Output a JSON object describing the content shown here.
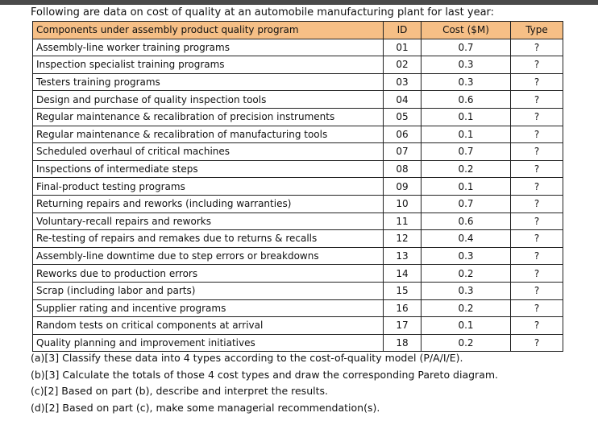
{
  "intro": "Following are data on cost of quality at an automobile manufacturing plant for last year:",
  "table": {
    "headers": {
      "component": "Components under assembly product quality program",
      "id": "ID",
      "cost": "Cost ($M)",
      "type": "Type"
    },
    "header_color": "#f6bf86",
    "rows": [
      {
        "component": "Assembly-line worker training programs",
        "id": "01",
        "cost": "0.7",
        "type": "?"
      },
      {
        "component": "Inspection specialist training programs",
        "id": "02",
        "cost": "0.3",
        "type": "?"
      },
      {
        "component": "Testers training programs",
        "id": "03",
        "cost": "0.3",
        "type": "?"
      },
      {
        "component": "Design and purchase of quality inspection tools",
        "id": "04",
        "cost": "0.6",
        "type": "?"
      },
      {
        "component": "Regular maintenance & recalibration of precision instruments",
        "id": "05",
        "cost": "0.1",
        "type": "?"
      },
      {
        "component": "Regular maintenance & recalibration of manufacturing tools",
        "id": "06",
        "cost": "0.1",
        "type": "?"
      },
      {
        "component": "Scheduled overhaul of critical machines",
        "id": "07",
        "cost": "0.7",
        "type": "?"
      },
      {
        "component": "Inspections of intermediate steps",
        "id": "08",
        "cost": "0.2",
        "type": "?"
      },
      {
        "component": "Final-product testing programs",
        "id": "09",
        "cost": "0.1",
        "type": "?"
      },
      {
        "component": "Returning repairs and reworks (including warranties)",
        "id": "10",
        "cost": "0.7",
        "type": "?"
      },
      {
        "component": "Voluntary-recall repairs and reworks",
        "id": "11",
        "cost": "0.6",
        "type": "?"
      },
      {
        "component": "Re-testing of repairs and remakes due to returns & recalls",
        "id": "12",
        "cost": "0.4",
        "type": "?"
      },
      {
        "component": "Assembly-line downtime due to step errors or breakdowns",
        "id": "13",
        "cost": "0.3",
        "type": "?"
      },
      {
        "component": "Reworks due to production errors",
        "id": "14",
        "cost": "0.2",
        "type": "?"
      },
      {
        "component": "Scrap (including labor and parts)",
        "id": "15",
        "cost": "0.3",
        "type": "?"
      },
      {
        "component": "Supplier rating and incentive programs",
        "id": "16",
        "cost": "0.2",
        "type": "?"
      },
      {
        "component": "Random tests on critical components at arrival",
        "id": "17",
        "cost": "0.1",
        "type": "?"
      },
      {
        "component": "Quality planning and improvement initiatives",
        "id": "18",
        "cost": "0.2",
        "type": "?"
      }
    ]
  },
  "questions": [
    "(a)[3] Classify these data into 4 types according to the cost-of-quality model (P/A/I/E).",
    "(b)[3] Calculate the totals of those 4 cost types and draw the corresponding Pareto diagram.",
    "(c)[2] Based on part (b), describe and interpret the results.",
    "(d)[2] Based on part (c), make some managerial recommendation(s)."
  ]
}
